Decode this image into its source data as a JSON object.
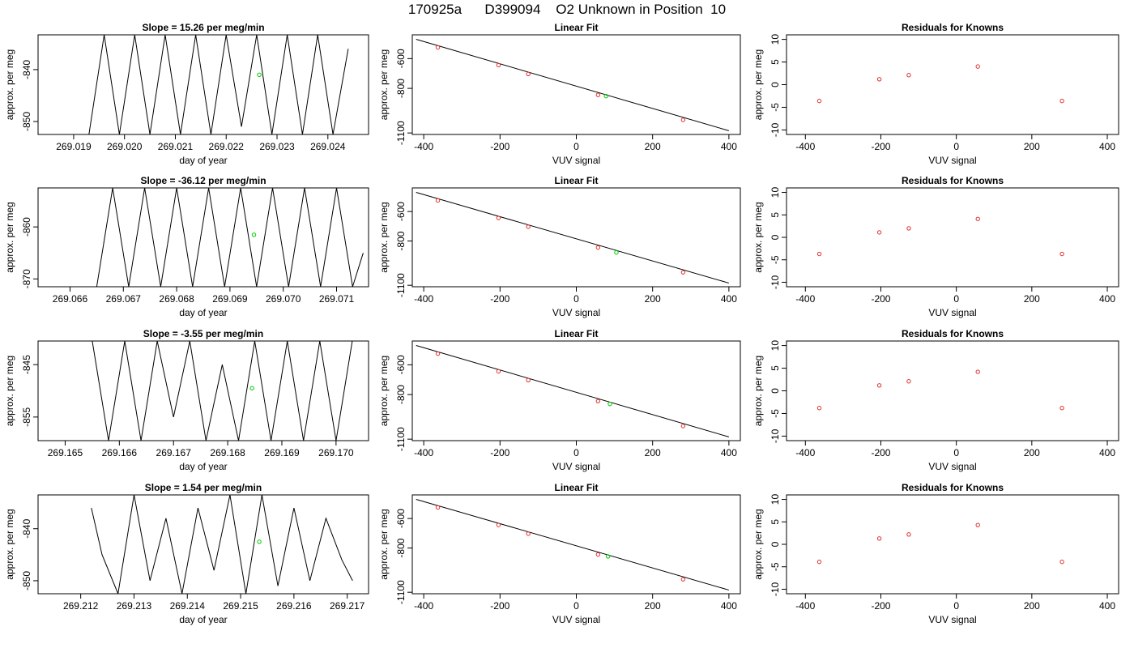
{
  "page": {
    "title": "170925a      D399094    O2 Unknown in Position  10"
  },
  "colors": {
    "axis": "#000000",
    "trace": "#000000",
    "known_point": "#e03030",
    "unknown_point": "#00cc00"
  },
  "chart_data": [
    {
      "type": "line",
      "title": "Slope =  15.26  per meg/min",
      "xlabel": "day of year",
      "ylabel": "approx. per meg",
      "xlim": [
        269.0183,
        269.0248
      ],
      "ylim": [
        -852.5,
        -833.3
      ],
      "xticks": [
        269.019,
        269.02,
        269.021,
        269.022,
        269.023,
        269.024
      ],
      "xtick_labels": [
        "269.019",
        "269.020",
        "269.021",
        "269.022",
        "269.023",
        "269.024"
      ],
      "yticks": [
        -840,
        -850
      ],
      "ytick_labels": [
        "-840",
        "-850"
      ],
      "series": [
        {
          "x": [
            269.0193,
            269.0196,
            269.0199,
            269.0202,
            269.0205,
            269.0208,
            269.0211,
            269.0214,
            269.0217,
            269.022,
            269.0223,
            269.0226,
            269.0229,
            269.0232,
            269.0235,
            269.0238,
            269.0241,
            269.0244
          ],
          "y": [
            -852.5,
            -833.3,
            -852.5,
            -833.3,
            -852.5,
            -833.3,
            -852.5,
            -833.3,
            -852.5,
            -833.3,
            -851.0,
            -833.3,
            -852.5,
            -833.3,
            -852.5,
            -833.3,
            -852.5,
            -836.0
          ]
        }
      ],
      "unknown_point": {
        "x": 269.02265,
        "y": -841.0
      }
    },
    {
      "type": "scatter",
      "title": "Linear Fit",
      "xlabel": "VUV signal",
      "ylabel": "approx. per meg",
      "xlim": [
        -430,
        430
      ],
      "ylim": [
        -1110,
        -440
      ],
      "xticks": [
        -400,
        -200,
        0,
        200,
        400
      ],
      "xtick_labels": [
        "-400",
        "-200",
        "0",
        "200",
        "400"
      ],
      "yticks": [
        -600,
        -800,
        -1100
      ],
      "ytick_labels": [
        "-600",
        "-800",
        "-1100"
      ],
      "fit_line": {
        "x": [
          -420,
          400
        ],
        "y": [
          -470,
          -1085
        ]
      },
      "knowns": {
        "x": [
          -363,
          -204,
          -126,
          57,
          280
        ],
        "y": [
          -525,
          -644,
          -703,
          -844,
          -1012
        ]
      },
      "unknown": {
        "x": 78,
        "y": -852
      }
    },
    {
      "type": "scatter",
      "title": "Residuals for Knowns",
      "xlabel": "VUV signal",
      "ylabel": "approx. per meg",
      "xlim": [
        -450,
        430
      ],
      "ylim": [
        -11,
        11
      ],
      "xticks": [
        -400,
        -200,
        0,
        200,
        400
      ],
      "xtick_labels": [
        "-400",
        "-200",
        "0",
        "200",
        "400"
      ],
      "yticks": [
        10,
        5,
        0,
        -5,
        -10
      ],
      "ytick_labels": [
        "10",
        "5",
        "0",
        "-5",
        "-10"
      ],
      "knowns": {
        "x": [
          -363,
          -204,
          -126,
          57,
          280
        ],
        "y": [
          -3.6,
          1.2,
          2.1,
          4.0,
          -3.6
        ]
      }
    },
    {
      "type": "line",
      "title": "Slope =  -36.12  per meg/min",
      "xlabel": "day of year",
      "ylabel": "approx. per meg",
      "xlim": [
        269.0654,
        269.0716
      ],
      "ylim": [
        -871.5,
        -852.5
      ],
      "xticks": [
        269.066,
        269.067,
        269.068,
        269.069,
        269.07,
        269.071
      ],
      "xtick_labels": [
        "269.066",
        "269.067",
        "269.068",
        "269.069",
        "269.070",
        "269.071"
      ],
      "yticks": [
        -860,
        -870
      ],
      "ytick_labels": [
        "-860",
        "-870"
      ],
      "series": [
        {
          "x": [
            269.0665,
            269.0668,
            269.0671,
            269.0674,
            269.0677,
            269.068,
            269.0683,
            269.0686,
            269.0689,
            269.0692,
            269.0695,
            269.0698,
            269.0701,
            269.0704,
            269.0707,
            269.071,
            269.0713,
            269.0715
          ],
          "y": [
            -871.5,
            -852.5,
            -871.5,
            -852.5,
            -871.5,
            -852.5,
            -871.5,
            -852.5,
            -871.5,
            -852.5,
            -871.5,
            -852.5,
            -871.5,
            -852.5,
            -871.5,
            -852.5,
            -871.5,
            -865.0
          ]
        }
      ],
      "unknown_point": {
        "x": 269.06945,
        "y": -861.5
      }
    },
    {
      "type": "scatter",
      "title": "Linear Fit",
      "xlabel": "VUV signal",
      "ylabel": "approx. per meg",
      "xlim": [
        -430,
        430
      ],
      "ylim": [
        -1110,
        -440
      ],
      "xticks": [
        -400,
        -200,
        0,
        200,
        400
      ],
      "xtick_labels": [
        "-400",
        "-200",
        "0",
        "200",
        "400"
      ],
      "yticks": [
        -600,
        -800,
        -1100
      ],
      "ytick_labels": [
        "-600",
        "-800",
        "-1100"
      ],
      "fit_line": {
        "x": [
          -420,
          400
        ],
        "y": [
          -470,
          -1085
        ]
      },
      "knowns": {
        "x": [
          -363,
          -204,
          -126,
          57,
          280
        ],
        "y": [
          -525,
          -644,
          -703,
          -844,
          -1012
        ]
      },
      "unknown": {
        "x": 105,
        "y": -878
      }
    },
    {
      "type": "scatter",
      "title": "Residuals for Knowns",
      "xlabel": "VUV signal",
      "ylabel": "approx. per meg",
      "xlim": [
        -450,
        430
      ],
      "ylim": [
        -11,
        11
      ],
      "xticks": [
        -400,
        -200,
        0,
        200,
        400
      ],
      "xtick_labels": [
        "-400",
        "-200",
        "0",
        "200",
        "400"
      ],
      "yticks": [
        10,
        5,
        0,
        -5,
        -10
      ],
      "ytick_labels": [
        "10",
        "5",
        "0",
        "-5",
        "-10"
      ],
      "knowns": {
        "x": [
          -363,
          -204,
          -126,
          57,
          280
        ],
        "y": [
          -3.7,
          1.1,
          2.0,
          4.1,
          -3.7
        ]
      }
    },
    {
      "type": "line",
      "title": "Slope =  -3.55  per meg/min",
      "xlabel": "day of year",
      "ylabel": "approx. per meg",
      "xlim": [
        269.1645,
        269.1706
      ],
      "ylim": [
        -859.5,
        -840.5
      ],
      "xticks": [
        269.165,
        269.166,
        269.167,
        269.168,
        269.169,
        269.17
      ],
      "xtick_labels": [
        "269.165",
        "269.166",
        "269.167",
        "269.168",
        "269.169",
        "269.170"
      ],
      "yticks": [
        -845,
        -855
      ],
      "ytick_labels": [
        "-845",
        "-855"
      ],
      "series": [
        {
          "x": [
            269.1655,
            269.1658,
            269.1661,
            269.1664,
            269.1667,
            269.167,
            269.1673,
            269.1676,
            269.1679,
            269.1682,
            269.1685,
            269.1688,
            269.1691,
            269.1694,
            269.1697,
            269.17,
            269.1703
          ],
          "y": [
            -840.5,
            -859.5,
            -840.5,
            -859.5,
            -840.5,
            -855.0,
            -840.5,
            -859.5,
            -845.0,
            -859.5,
            -840.5,
            -859.5,
            -840.5,
            -859.5,
            -840.5,
            -859.5,
            -840.5
          ]
        }
      ],
      "unknown_point": {
        "x": 269.16845,
        "y": -849.5
      }
    },
    {
      "type": "scatter",
      "title": "Linear Fit",
      "xlabel": "VUV signal",
      "ylabel": "approx. per meg",
      "xlim": [
        -430,
        430
      ],
      "ylim": [
        -1110,
        -440
      ],
      "xticks": [
        -400,
        -200,
        0,
        200,
        400
      ],
      "xtick_labels": [
        "-400",
        "-200",
        "0",
        "200",
        "400"
      ],
      "yticks": [
        -600,
        -800,
        -1100
      ],
      "ytick_labels": [
        "-600",
        "-800",
        "-1100"
      ],
      "fit_line": {
        "x": [
          -420,
          400
        ],
        "y": [
          -470,
          -1085
        ]
      },
      "knowns": {
        "x": [
          -363,
          -204,
          -126,
          57,
          280
        ],
        "y": [
          -525,
          -644,
          -703,
          -844,
          -1012
        ]
      },
      "unknown": {
        "x": 88,
        "y": -863
      }
    },
    {
      "type": "scatter",
      "title": "Residuals for Knowns",
      "xlabel": "VUV signal",
      "ylabel": "approx. per meg",
      "xlim": [
        -450,
        430
      ],
      "ylim": [
        -11,
        11
      ],
      "xticks": [
        -400,
        -200,
        0,
        200,
        400
      ],
      "xtick_labels": [
        "-400",
        "-200",
        "0",
        "200",
        "400"
      ],
      "yticks": [
        10,
        5,
        0,
        -5,
        -10
      ],
      "ytick_labels": [
        "10",
        "5",
        "0",
        "-5",
        "-10"
      ],
      "knowns": {
        "x": [
          -363,
          -204,
          -126,
          57,
          280
        ],
        "y": [
          -3.8,
          1.2,
          2.1,
          4.2,
          -3.8
        ]
      }
    },
    {
      "type": "line",
      "title": "Slope =  1.54  per meg/min",
      "xlabel": "day of year",
      "ylabel": "approx. per meg",
      "xlim": [
        269.2112,
        269.2174
      ],
      "ylim": [
        -852.5,
        -833.5
      ],
      "xticks": [
        269.212,
        269.213,
        269.214,
        269.215,
        269.216,
        269.217
      ],
      "xtick_labels": [
        "269.212",
        "269.213",
        "269.214",
        "269.215",
        "269.216",
        "269.217"
      ],
      "yticks": [
        -840,
        -850
      ],
      "ytick_labels": [
        "-840",
        "-850"
      ],
      "series": [
        {
          "x": [
            269.2122,
            269.2124,
            269.2127,
            269.213,
            269.2133,
            269.2136,
            269.2139,
            269.2142,
            269.2145,
            269.2148,
            269.2151,
            269.2154,
            269.2157,
            269.216,
            269.2163,
            269.2166,
            269.2169,
            269.2171
          ],
          "y": [
            -836.0,
            -845.0,
            -852.5,
            -833.5,
            -850.0,
            -838.0,
            -852.5,
            -836.0,
            -848.0,
            -833.5,
            -852.5,
            -833.5,
            -851.0,
            -836.0,
            -850.0,
            -838.0,
            -846.0,
            -850.0
          ]
        }
      ],
      "unknown_point": {
        "x": 269.21535,
        "y": -842.5
      }
    },
    {
      "type": "scatter",
      "title": "Linear Fit",
      "xlabel": "VUV signal",
      "ylabel": "approx. per meg",
      "xlim": [
        -430,
        430
      ],
      "ylim": [
        -1110,
        -440
      ],
      "xticks": [
        -400,
        -200,
        0,
        200,
        400
      ],
      "xtick_labels": [
        "-400",
        "-200",
        "0",
        "200",
        "400"
      ],
      "yticks": [
        -600,
        -800,
        -1100
      ],
      "ytick_labels": [
        "-600",
        "-800",
        "-1100"
      ],
      "fit_line": {
        "x": [
          -420,
          400
        ],
        "y": [
          -470,
          -1085
        ]
      },
      "knowns": {
        "x": [
          -363,
          -204,
          -126,
          57,
          280
        ],
        "y": [
          -525,
          -644,
          -703,
          -844,
          -1012
        ]
      },
      "unknown": {
        "x": 83,
        "y": -857
      }
    },
    {
      "type": "scatter",
      "title": "Residuals for Knowns",
      "xlabel": "VUV signal",
      "ylabel": "approx. per meg",
      "xlim": [
        -450,
        430
      ],
      "ylim": [
        -11,
        11
      ],
      "xticks": [
        -400,
        -200,
        0,
        200,
        400
      ],
      "xtick_labels": [
        "-400",
        "-200",
        "0",
        "200",
        "400"
      ],
      "yticks": [
        10,
        5,
        0,
        -5,
        -10
      ],
      "ytick_labels": [
        "10",
        "5",
        "0",
        "-5",
        "-10"
      ],
      "knowns": {
        "x": [
          -363,
          -204,
          -126,
          57,
          280
        ],
        "y": [
          -3.9,
          1.3,
          2.2,
          4.3,
          -3.9
        ]
      }
    }
  ]
}
